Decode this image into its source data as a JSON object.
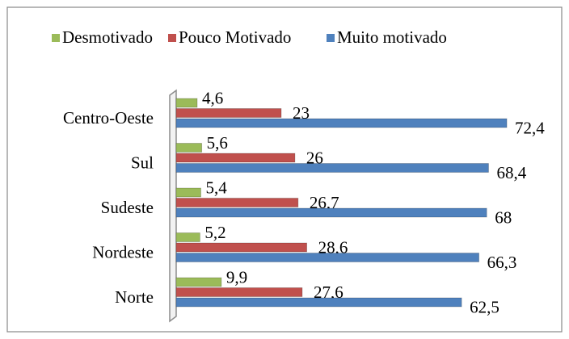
{
  "chart_data": {
    "type": "bar",
    "orientation": "horizontal",
    "categories": [
      "Centro-Oeste",
      "Sul",
      "Sudeste",
      "Nordeste",
      "Norte"
    ],
    "series": [
      {
        "name": "Desmotivado",
        "color": "#9bbb59",
        "values": [
          4.6,
          5.6,
          5.4,
          5.2,
          9.9
        ],
        "value_labels": [
          "4,6",
          "5,6",
          "5,4",
          "5,2",
          "9,9"
        ]
      },
      {
        "name": "Pouco Motivado",
        "color": "#c0504d",
        "values": [
          23,
          26,
          26.7,
          28.6,
          27.6
        ],
        "value_labels": [
          "23",
          "26",
          "26,7",
          "28,6",
          "27,6"
        ]
      },
      {
        "name": "Muito motivado",
        "color": "#4f81bd",
        "values": [
          72.4,
          68.4,
          68,
          66.3,
          62.5
        ],
        "value_labels": [
          "72,4",
          "68,4",
          "68",
          "66,3",
          "62,5"
        ]
      }
    ],
    "xlim": [
      0,
      80
    ],
    "legend": "top"
  }
}
